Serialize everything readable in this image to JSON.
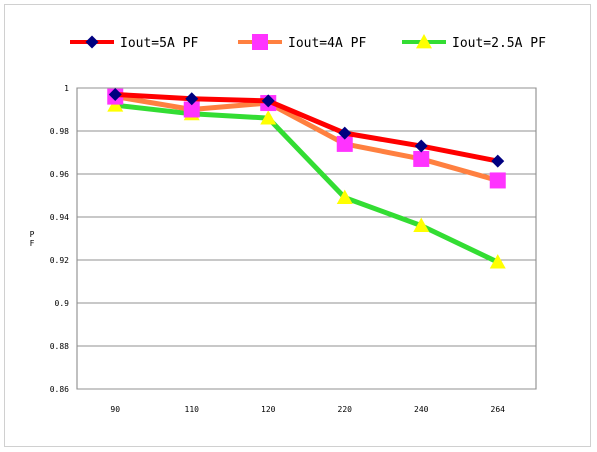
{
  "chart_data": {
    "type": "line",
    "title": "",
    "xlabel": "",
    "ylabel": "PF",
    "ylim": [
      0.86,
      1.0
    ],
    "ytick_step": 0.02,
    "yticks": [
      "1",
      "0.98",
      "0.96",
      "0.94",
      "0.92",
      "0.9",
      "0.88",
      "0.86"
    ],
    "categories": [
      "90",
      "110",
      "120",
      "220",
      "240",
      "264"
    ],
    "grid": true,
    "legend_position": "top",
    "series": [
      {
        "name": "Iout=5A PF",
        "color": "#ff0000",
        "marker": "diamond",
        "marker_color": "#000080",
        "values": [
          0.997,
          0.995,
          0.994,
          0.979,
          0.973,
          0.966
        ]
      },
      {
        "name": "Iout=4A PF",
        "color": "#ff8040",
        "marker": "square",
        "marker_color": "#ff33ff",
        "values": [
          0.996,
          0.99,
          0.993,
          0.974,
          0.967,
          0.957
        ]
      },
      {
        "name": "Iout=2.5A PF",
        "color": "#33dd33",
        "marker": "triangle",
        "marker_color": "#ffff00",
        "values": [
          0.992,
          0.988,
          0.986,
          0.949,
          0.936,
          0.919
        ]
      }
    ]
  }
}
